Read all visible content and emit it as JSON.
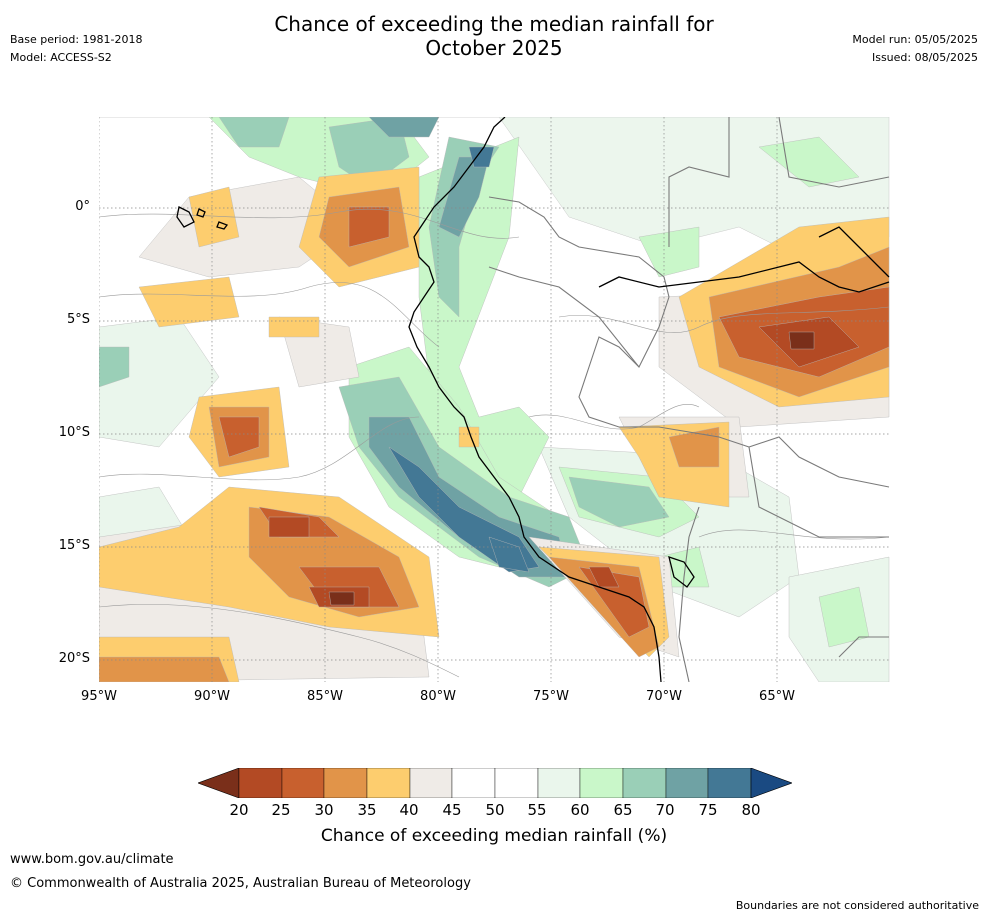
{
  "title_line1": "Chance of exceeding the median rainfall for",
  "title_line2": "October 2025",
  "base_period": "Base period: 1981-2018",
  "model": "Model: ACCESS-S2",
  "model_run": "Model run: 05/05/2025",
  "issued": "Issued: 08/05/2025",
  "map": {
    "lat_labels": [
      "0°",
      "5°S",
      "10°S",
      "15°S",
      "20°S"
    ],
    "lon_labels": [
      "95°W",
      "90°W",
      "85°W",
      "80°W",
      "75°W",
      "70°W",
      "65°W"
    ],
    "colors": {
      "c20": "#7a2f1a",
      "c25": "#b34a24",
      "c30": "#c8602e",
      "c35": "#e19449",
      "c40": "#fdcd6e",
      "c45": "#efebe7",
      "c50": "#ffffff",
      "c55": "#ffffff",
      "c60": "#eaf6ec",
      "c65": "#c9f7c9",
      "c70": "#9acfb7",
      "c75": "#6fa2a4",
      "c80": "#437895",
      "c85": "#1a4a82"
    }
  },
  "colorbar": {
    "ticks": [
      "20",
      "25",
      "30",
      "35",
      "40",
      "45",
      "50",
      "55",
      "60",
      "65",
      "70",
      "75",
      "80"
    ],
    "label": "Chance of exceeding median rainfall (%)"
  },
  "footer": {
    "url": "www.bom.gov.au/climate",
    "copyright": "© Commonwealth of Australia 2025, Australian Bureau of Meteorology",
    "disclaimer": "Boundaries are not considered authoritative"
  }
}
